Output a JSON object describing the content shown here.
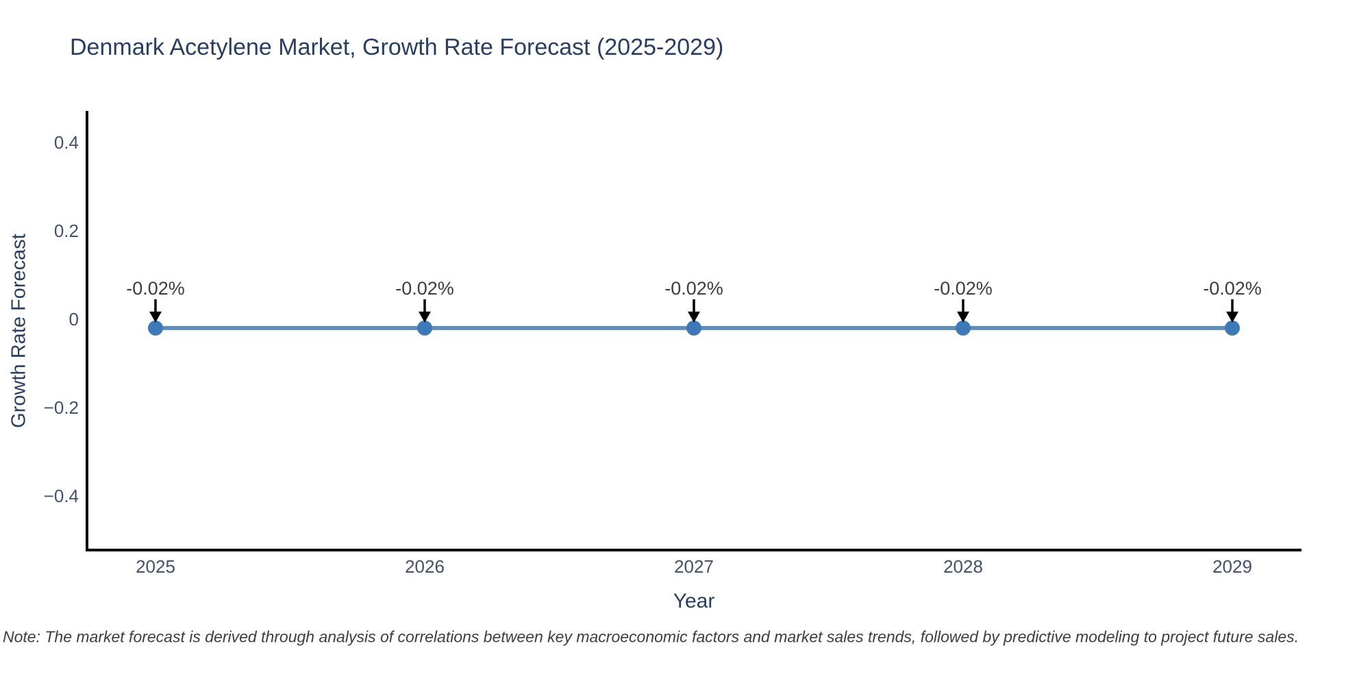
{
  "note": {
    "text": "Note: The market forecast is derived through analysis of correlations between key macroeconomic factors and market sales trends, followed by predictive modeling to project future sales."
  },
  "chart_data": {
    "type": "line",
    "title": "Denmark Acetylene Market, Growth Rate Forecast (2025-2029)",
    "xlabel": "Year",
    "ylabel": "Growth Rate Forecast",
    "categories": [
      "2025",
      "2026",
      "2027",
      "2028",
      "2029"
    ],
    "series": [
      {
        "name": "Growth Rate Forecast",
        "values": [
          -0.02,
          -0.02,
          -0.02,
          -0.02,
          -0.02
        ]
      }
    ],
    "point_labels": [
      "-0.02%",
      "-0.02%",
      "-0.02%",
      "-0.02%",
      "-0.02%"
    ],
    "yticks": [
      {
        "value": 0.4,
        "label": "0.4"
      },
      {
        "value": 0.2,
        "label": "0.2"
      },
      {
        "value": 0,
        "label": "0"
      },
      {
        "value": -0.2,
        "label": "−0.2"
      },
      {
        "value": -0.4,
        "label": "−0.4"
      }
    ],
    "ylim": [
      -0.52,
      0.47
    ],
    "grid": false,
    "legend_visible": false,
    "colors": {
      "line": "#4e81ad",
      "marker": "#3c79b6",
      "axis": "#000000",
      "title_text": "#2a3f5f",
      "tick_text": "#42526b",
      "annotation_text": "#3d3d3d",
      "annotation_arrow": "#000000",
      "background": "#ffffff"
    }
  }
}
